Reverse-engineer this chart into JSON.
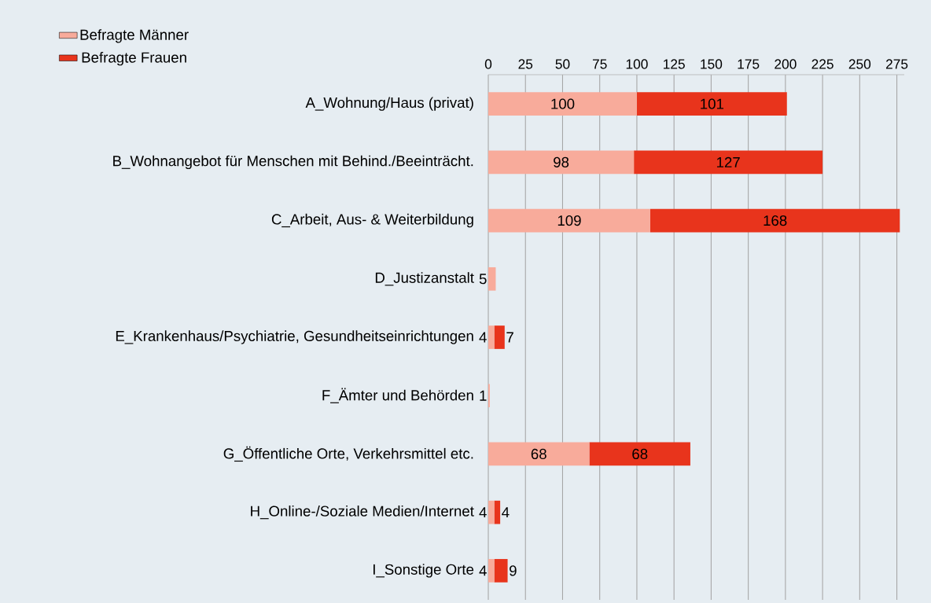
{
  "chart_data": {
    "type": "bar",
    "orientation": "horizontal",
    "stacked": true,
    "categories": [
      "A_Wohnung/Haus (privat)",
      "B_Wohnangebot für Menschen mit Behind./Beeinträcht.",
      "C_Arbeit, Aus- & Weiterbildung",
      "D_Justizanstalt",
      "E_Krankenhaus/Psychiatrie, Gesundheitseinrichtungen",
      "F_Ämter und Behörden",
      "G_Öffentliche Orte, Verkehrsmittel etc.",
      "H_Online-/Soziale Medien/Internet",
      "I_Sonstige Orte"
    ],
    "series": [
      {
        "name": "Befragte Männer",
        "color": "#f8ab9b",
        "values": [
          100,
          98,
          109,
          5,
          4,
          1,
          68,
          4,
          4
        ]
      },
      {
        "name": "Befragte Frauen",
        "color": "#e8341c",
        "values": [
          101,
          127,
          168,
          null,
          7,
          null,
          68,
          4,
          9
        ]
      }
    ],
    "xlim": [
      0,
      280
    ],
    "xticks": [
      0,
      25,
      50,
      75,
      100,
      125,
      150,
      175,
      200,
      225,
      250,
      275
    ],
    "grid": "x",
    "legend": "top left",
    "data_labels": true
  }
}
